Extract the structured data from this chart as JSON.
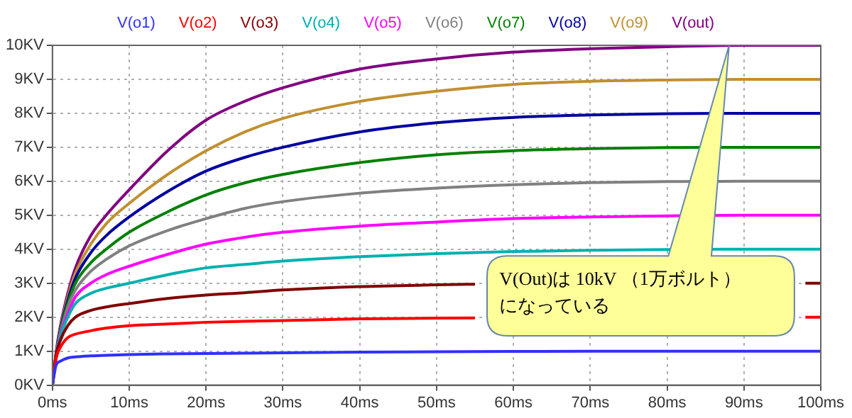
{
  "chart_data": {
    "type": "line",
    "x": [
      0,
      0.5,
      1,
      2,
      3,
      5,
      7,
      10,
      15,
      20,
      25,
      30,
      40,
      50,
      60,
      70,
      80,
      90,
      100
    ],
    "xlim": [
      0,
      100
    ],
    "xticks": [
      {
        "value": 0,
        "label": "0ms"
      },
      {
        "value": 10,
        "label": "10ms"
      },
      {
        "value": 20,
        "label": "20ms"
      },
      {
        "value": 30,
        "label": "30ms"
      },
      {
        "value": 40,
        "label": "40ms"
      },
      {
        "value": 50,
        "label": "50ms"
      },
      {
        "value": 60,
        "label": "60ms"
      },
      {
        "value": 70,
        "label": "70ms"
      },
      {
        "value": 80,
        "label": "80ms"
      },
      {
        "value": 90,
        "label": "90ms"
      },
      {
        "value": 100,
        "label": "100ms"
      }
    ],
    "ylim": [
      0,
      10
    ],
    "yticks": [
      {
        "value": 0,
        "label": "0KV"
      },
      {
        "value": 1,
        "label": "1KV"
      },
      {
        "value": 2,
        "label": "2KV"
      },
      {
        "value": 3,
        "label": "3KV"
      },
      {
        "value": 4,
        "label": "4KV"
      },
      {
        "value": 5,
        "label": "5KV"
      },
      {
        "value": 6,
        "label": "6KV"
      },
      {
        "value": 7,
        "label": "7KV"
      },
      {
        "value": 8,
        "label": "8KV"
      },
      {
        "value": 9,
        "label": "9KV"
      },
      {
        "value": 10,
        "label": "10KV"
      }
    ],
    "series": [
      {
        "name": "V(o1)",
        "color": "#3030ff",
        "values": [
          0,
          0.6,
          0.7,
          0.8,
          0.83,
          0.86,
          0.88,
          0.9,
          0.92,
          0.93,
          0.94,
          0.95,
          0.97,
          0.98,
          0.99,
          1,
          1,
          1,
          1
        ]
      },
      {
        "name": "V(o2)",
        "color": "#ff0000",
        "x": [
          0,
          0.5,
          1,
          2,
          3,
          5,
          7,
          10,
          15,
          20,
          25,
          30,
          40,
          50,
          55,
          57,
          98,
          100
        ],
        "values": [
          0,
          0.8,
          1.1,
          1.4,
          1.5,
          1.6,
          1.68,
          1.75,
          1.8,
          1.85,
          1.88,
          1.9,
          1.95,
          1.97,
          1.98,
          null,
          2,
          2
        ]
      },
      {
        "name": "V(o3)",
        "color": "#800000",
        "x": [
          0,
          0.5,
          1,
          2,
          3,
          5,
          7,
          10,
          15,
          20,
          25,
          30,
          40,
          50,
          55,
          57,
          98,
          100
        ],
        "values": [
          0,
          0.9,
          1.3,
          1.75,
          2,
          2.2,
          2.3,
          2.4,
          2.55,
          2.65,
          2.72,
          2.8,
          2.9,
          2.95,
          2.97,
          null,
          3,
          3
        ]
      },
      {
        "name": "V(o4)",
        "color": "#00b0b0",
        "values": [
          0,
          0.9,
          1.4,
          2.0,
          2.4,
          2.7,
          2.85,
          3.0,
          3.25,
          3.45,
          3.55,
          3.65,
          3.78,
          3.87,
          3.93,
          3.97,
          3.99,
          4,
          4
        ]
      },
      {
        "name": "V(o5)",
        "color": "#ff00ff",
        "values": [
          0,
          0.9,
          1.45,
          2.1,
          2.6,
          3.0,
          3.25,
          3.5,
          3.85,
          4.15,
          4.35,
          4.5,
          4.68,
          4.8,
          4.9,
          4.95,
          4.98,
          5,
          5
        ]
      },
      {
        "name": "V(o6)",
        "color": "#808080",
        "values": [
          0,
          0.9,
          1.5,
          2.3,
          2.8,
          3.35,
          3.7,
          4.1,
          4.55,
          4.9,
          5.2,
          5.4,
          5.65,
          5.8,
          5.9,
          5.96,
          5.99,
          6,
          6
        ]
      },
      {
        "name": "V(o7)",
        "color": "#008000",
        "values": [
          0,
          0.9,
          1.55,
          2.4,
          3.0,
          3.6,
          4.0,
          4.5,
          5.1,
          5.6,
          5.95,
          6.2,
          6.55,
          6.78,
          6.9,
          6.96,
          6.99,
          7,
          7
        ]
      },
      {
        "name": "V(o8)",
        "color": "#0000a0",
        "values": [
          0,
          0.95,
          1.6,
          2.5,
          3.15,
          3.9,
          4.4,
          4.95,
          5.7,
          6.3,
          6.7,
          7.0,
          7.45,
          7.72,
          7.88,
          7.95,
          7.99,
          8,
          8
        ]
      },
      {
        "name": "V(o9)",
        "color": "#c09030",
        "values": [
          0,
          0.95,
          1.65,
          2.6,
          3.3,
          4.15,
          4.75,
          5.35,
          6.2,
          6.9,
          7.45,
          7.85,
          8.35,
          8.65,
          8.85,
          8.94,
          8.98,
          9,
          9
        ]
      },
      {
        "name": "V(out)",
        "color": "#800080",
        "values": [
          0,
          1,
          1.7,
          2.7,
          3.45,
          4.4,
          5.0,
          5.75,
          6.9,
          7.8,
          8.35,
          8.75,
          9.3,
          9.6,
          9.8,
          9.9,
          9.96,
          10,
          10
        ]
      }
    ],
    "annotations": [
      "V(Out)は 10kV （1万ボルト）になっている"
    ],
    "grid": true,
    "legend": "top",
    "marker": "none",
    "line_style": "solid"
  }
}
